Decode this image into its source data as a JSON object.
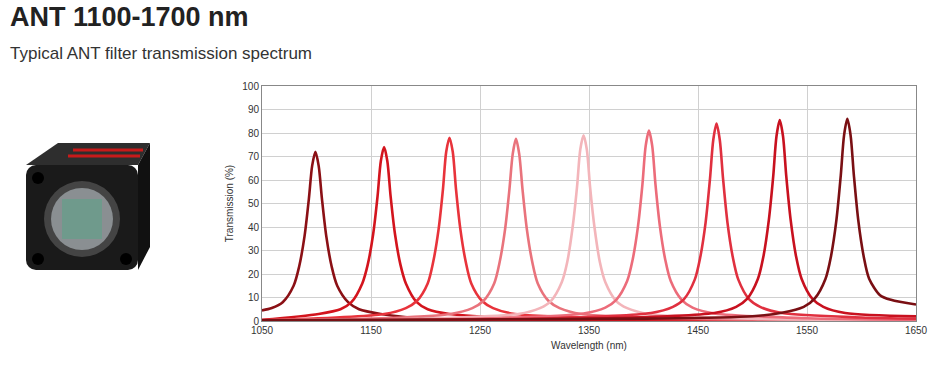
{
  "header": {
    "title": "ANT 1100-1700 nm",
    "subtitle": "Typical ANT filter transmission spectrum"
  },
  "chart_data": {
    "type": "line",
    "x_label": "Wavelength (nm)",
    "y_label": "Transmission (%)",
    "xlim": [
      1050,
      1650
    ],
    "xticks": [
      1050,
      1150,
      1250,
      1350,
      1450,
      1550,
      1650
    ],
    "ylim": [
      0,
      100
    ],
    "yticks": [
      0,
      10,
      20,
      30,
      40,
      50,
      60,
      70,
      80,
      90,
      100
    ],
    "grid": true,
    "series": [
      {
        "color": "#8b1015",
        "x": [
          1050,
          1059,
          1069,
          1079,
          1084,
          1089,
          1093,
          1096,
          1099,
          1102,
          1105,
          1109,
          1114,
          1119,
          1129,
          1139,
          1159,
          1200,
          1300,
          1650
        ],
        "values": [
          4.5,
          5.5,
          8,
          15,
          23,
          36,
          52,
          66,
          72,
          66,
          52,
          36,
          23,
          15,
          8,
          5,
          3,
          1,
          0.5,
          0.3
        ]
      },
      {
        "color": "#d3141d",
        "x": [
          1050,
          1102,
          1122,
          1132,
          1142,
          1147,
          1152,
          1156,
          1159,
          1162,
          1165,
          1168,
          1172,
          1177,
          1182,
          1192,
          1202,
          1222,
          1300,
          1650
        ],
        "values": [
          0.5,
          3,
          5,
          8,
          16,
          24,
          37,
          53,
          68,
          74,
          68,
          53,
          37,
          24,
          16,
          8,
          5,
          3,
          1,
          0.3
        ]
      },
      {
        "color": "#e8333b",
        "x": [
          1050,
          1162,
          1182,
          1192,
          1202,
          1207,
          1212,
          1216,
          1219,
          1222,
          1225,
          1228,
          1232,
          1237,
          1242,
          1252,
          1262,
          1282,
          1400,
          1650
        ],
        "values": [
          0.3,
          3,
          5.5,
          8.5,
          16,
          25,
          39,
          56,
          72,
          78,
          72,
          56,
          39,
          25,
          16,
          8.5,
          5.5,
          3,
          1,
          0.3
        ]
      },
      {
        "color": "#e9737c",
        "x": [
          1050,
          1150,
          1223,
          1243,
          1253,
          1263,
          1268,
          1273,
          1277,
          1280,
          1283,
          1286,
          1289,
          1293,
          1298,
          1303,
          1313,
          1323,
          1343,
          1450,
          1650
        ],
        "values": [
          0.3,
          1,
          3,
          5.5,
          8.5,
          16,
          25,
          39,
          56,
          71,
          77.5,
          71,
          56,
          39,
          25,
          16,
          8.5,
          5.5,
          3,
          1,
          0.3
        ]
      },
      {
        "color": "#f3b5ba",
        "x": [
          1050,
          1200,
          1285,
          1305,
          1315,
          1325,
          1330,
          1335,
          1339,
          1342,
          1345,
          1348,
          1351,
          1355,
          1360,
          1365,
          1375,
          1385,
          1405,
          1500,
          1650
        ],
        "values": [
          0.3,
          1,
          3,
          5.5,
          8.5,
          16.5,
          25,
          40,
          57,
          73,
          79,
          73,
          57,
          40,
          25,
          16.5,
          8.5,
          5.5,
          3,
          1,
          0.4
        ]
      },
      {
        "color": "#ec6c7a",
        "x": [
          1050,
          1250,
          1345,
          1365,
          1375,
          1385,
          1390,
          1395,
          1399,
          1402,
          1405,
          1408,
          1411,
          1415,
          1420,
          1425,
          1435,
          1445,
          1465,
          1550,
          1650
        ],
        "values": [
          0.3,
          1,
          3.2,
          5.7,
          9,
          17,
          26,
          40.5,
          58,
          74.5,
          81,
          74.5,
          58,
          40.5,
          26,
          17,
          9,
          5.7,
          3.2,
          1.2,
          0.5
        ]
      },
      {
        "color": "#e0303f",
        "x": [
          1050,
          1300,
          1407,
          1427,
          1437,
          1447,
          1452,
          1457,
          1461,
          1464,
          1467,
          1470,
          1473,
          1477,
          1482,
          1487,
          1497,
          1507,
          1527,
          1600,
          1650
        ],
        "values": [
          0.3,
          1,
          3.4,
          6,
          9.2,
          17.6,
          27,
          42,
          60.5,
          77,
          84,
          77,
          60.5,
          42,
          27,
          17.6,
          9.2,
          6,
          3.4,
          1.5,
          1
        ]
      },
      {
        "color": "#c8111f",
        "x": [
          1050,
          1350,
          1465,
          1485,
          1495,
          1505,
          1510,
          1515,
          1519,
          1522,
          1525,
          1528,
          1531,
          1535,
          1540,
          1545,
          1555,
          1565,
          1585,
          1650
        ],
        "values": [
          0.3,
          1,
          3.4,
          6,
          9.4,
          18,
          27.4,
          43,
          61.5,
          78.6,
          85.5,
          78.6,
          61.5,
          43,
          27.4,
          18,
          9.4,
          6,
          3.4,
          2
        ]
      },
      {
        "color": "#7a0f13",
        "x": [
          1050,
          1400,
          1500,
          1527,
          1547,
          1557,
          1567,
          1572,
          1577,
          1581,
          1584,
          1587,
          1590,
          1593,
          1597,
          1602,
          1607,
          1617,
          1627,
          1650
        ],
        "values": [
          0.3,
          1,
          2,
          3.5,
          6,
          9.5,
          18,
          27.5,
          43,
          62,
          79,
          86,
          79,
          62,
          43,
          27.5,
          18,
          11,
          9,
          7
        ]
      }
    ]
  }
}
